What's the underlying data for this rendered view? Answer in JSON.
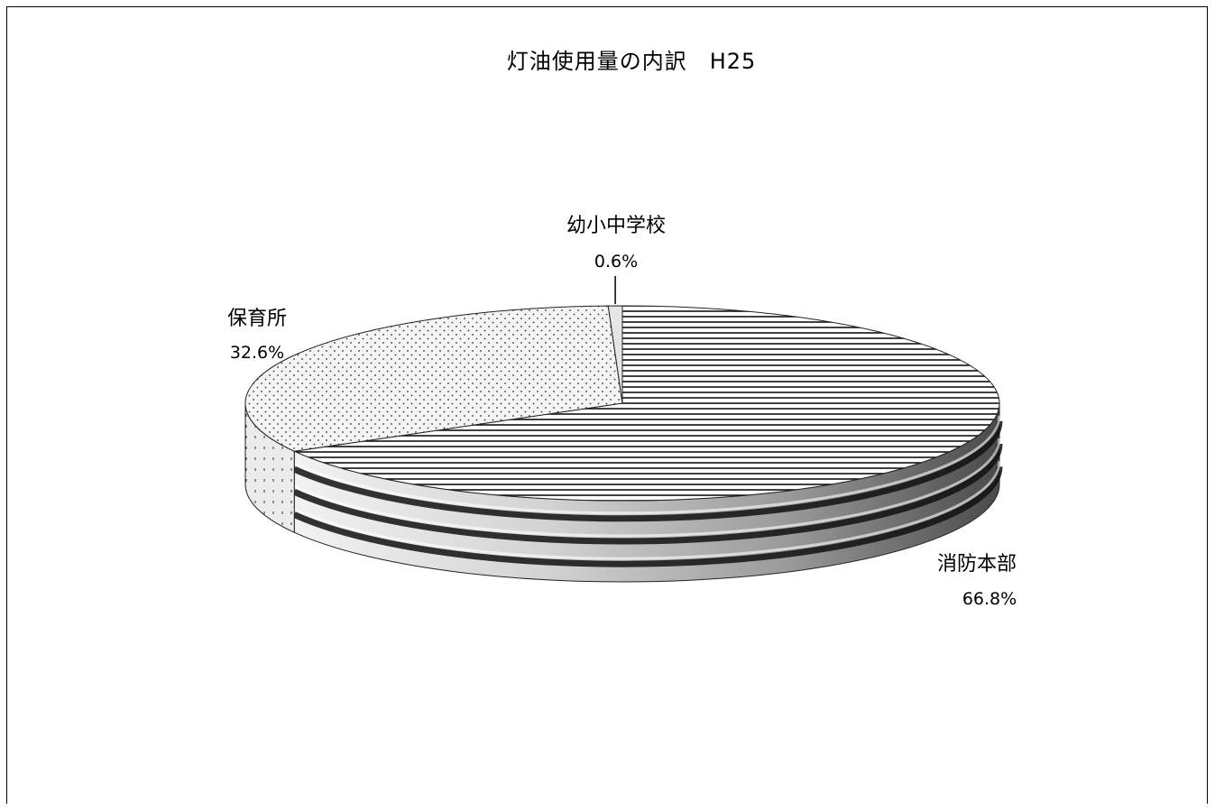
{
  "chart_data": {
    "type": "pie",
    "title": "灯油使用量の内訳　H25",
    "slices": [
      {
        "label": "消防本部",
        "value": 66.8,
        "value_label": "66.8%",
        "pattern": "horizontal-lines"
      },
      {
        "label": "保育所",
        "value": 32.6,
        "value_label": "32.6%",
        "pattern": "dots"
      },
      {
        "label": "幼小中学校",
        "value": 0.6,
        "value_label": "0.6%",
        "pattern": "solid-light"
      }
    ],
    "legend": "none",
    "style": "3d-pie"
  }
}
